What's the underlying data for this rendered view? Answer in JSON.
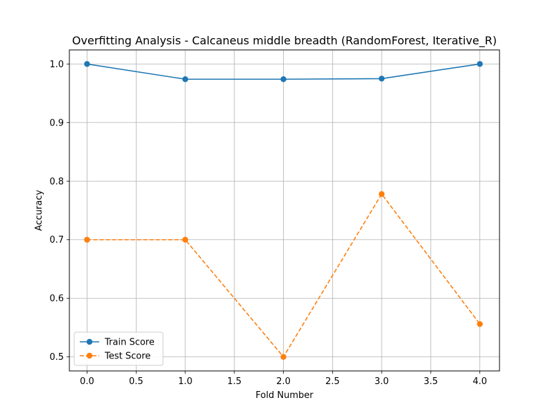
{
  "chart_data": {
    "type": "line",
    "title": "Overfitting Analysis - Calcaneus middle breadth (RandomForest, Iterative_R)",
    "xlabel": "Fold Number",
    "ylabel": "Accuracy",
    "xlim": [
      -0.18,
      4.2
    ],
    "ylim": [
      0.476,
      1.024
    ],
    "xticks": [
      0.0,
      0.5,
      1.0,
      1.5,
      2.0,
      2.5,
      3.0,
      3.5,
      4.0
    ],
    "xtick_labels": [
      "0.0",
      "0.5",
      "1.0",
      "1.5",
      "2.0",
      "2.5",
      "3.0",
      "3.5",
      "4.0"
    ],
    "yticks": [
      0.5,
      0.6,
      0.7,
      0.8,
      0.9,
      1.0
    ],
    "ytick_labels": [
      "0.5",
      "0.6",
      "0.7",
      "0.8",
      "0.9",
      "1.0"
    ],
    "grid": true,
    "legend_position": "lower-left",
    "x": [
      0,
      1,
      2,
      3,
      4
    ],
    "series": [
      {
        "name": "Train Score",
        "values": [
          1.0,
          0.974,
          0.974,
          0.975,
          1.0
        ],
        "color": "#1f77b4",
        "dash": "solid"
      },
      {
        "name": "Test Score",
        "values": [
          0.7,
          0.7,
          0.5,
          0.778,
          0.556
        ],
        "color": "#ff7f0e",
        "dash": "dashed"
      }
    ]
  }
}
